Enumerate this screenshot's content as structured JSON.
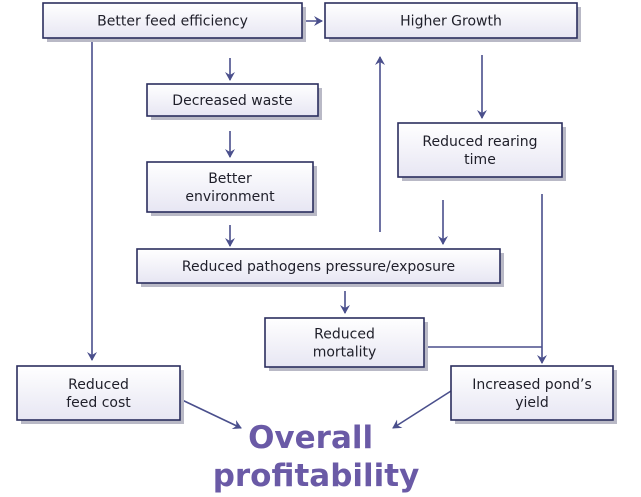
{
  "nodes": [
    {
      "lines": [
        "Better feed efficiency"
      ]
    },
    {
      "lines": [
        "Higher Growth"
      ]
    },
    {
      "lines": [
        "Decreased waste"
      ]
    },
    {
      "lines": [
        "Reduced rearing",
        "time"
      ]
    },
    {
      "lines": [
        "Better",
        "environment"
      ]
    },
    {
      "lines": [
        "Reduced pathogens pressure/exposure"
      ]
    },
    {
      "lines": [
        "Reduced",
        "mortality"
      ]
    },
    {
      "lines": [
        "Reduced",
        "feed cost"
      ]
    },
    {
      "lines": [
        "Increased pond’s",
        "yield"
      ]
    }
  ],
  "result": {
    "lines": [
      "Overall",
      "profitability"
    ]
  }
}
